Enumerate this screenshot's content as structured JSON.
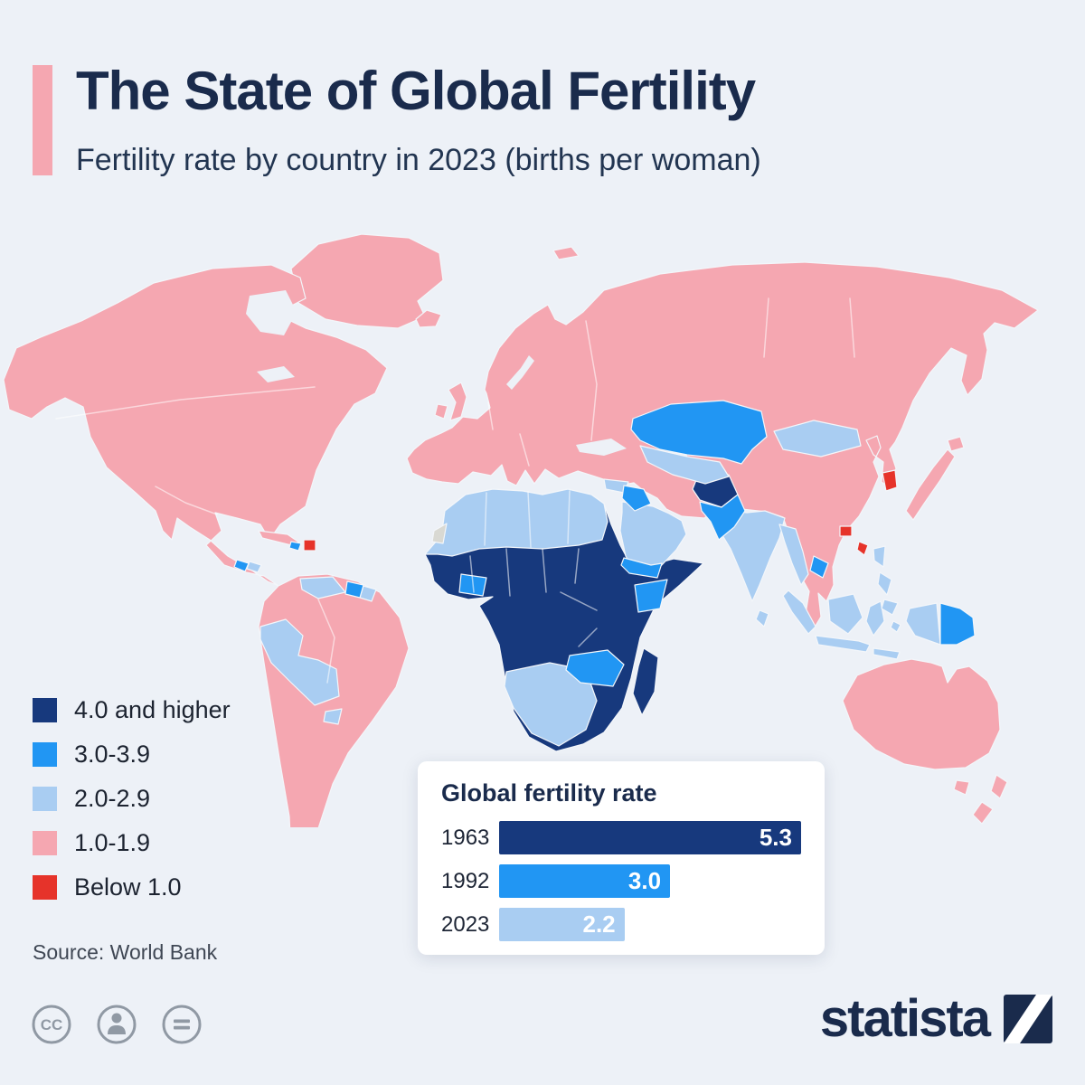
{
  "palette": {
    "bg": "#edf1f7",
    "ink": "#1a2b4c",
    "navy": "#17397d",
    "blue": "#2196f3",
    "light_blue": "#a9cdf2",
    "pink": "#f5a7b1",
    "red": "#e6332a",
    "grey": "#d9d9d3",
    "text": "#1c2330",
    "muted": "#3f4754",
    "icon_grey": "#9099a4"
  },
  "header": {
    "title": "The State of Global Fertility",
    "subtitle": "Fertility rate by country in 2023 (births per woman)"
  },
  "legend": {
    "items": [
      {
        "label": "4.0 and higher",
        "color": "#17397d"
      },
      {
        "label": "3.0-3.9",
        "color": "#2196f3"
      },
      {
        "label": "2.0-2.9",
        "color": "#a9cdf2"
      },
      {
        "label": "1.0-1.9",
        "color": "#f5a7b1"
      },
      {
        "label": "Below 1.0",
        "color": "#e6332a"
      }
    ]
  },
  "inset_chart": {
    "title": "Global fertility rate",
    "max": 5.3,
    "bars": [
      {
        "year": "1963",
        "value": 5.3,
        "value_label": "5.3",
        "color": "#17397d"
      },
      {
        "year": "1992",
        "value": 3.0,
        "value_label": "3.0",
        "color": "#2196f3"
      },
      {
        "year": "2023",
        "value": 2.2,
        "value_label": "2.2",
        "color": "#a9cdf2"
      }
    ]
  },
  "chart_data": [
    {
      "type": "heatmap",
      "subtype": "choropleth-world-map",
      "title": "Fertility rate by country in 2023 (births per woman)",
      "legend_bands": [
        {
          "label": "4.0 and higher",
          "color": "#17397d"
        },
        {
          "label": "3.0-3.9",
          "color": "#2196f3"
        },
        {
          "label": "2.0-2.9",
          "color": "#a9cdf2"
        },
        {
          "label": "1.0-1.9",
          "color": "#f5a7b1"
        },
        {
          "label": "Below 1.0",
          "color": "#e6332a"
        }
      ],
      "visible_region_bands": [
        {
          "region": "North America (Canada, USA, Mexico)",
          "band": "1.0-1.9"
        },
        {
          "region": "Greenland",
          "band": "1.0-1.9"
        },
        {
          "region": "South America (most)",
          "band": "1.0-1.9"
        },
        {
          "region": "Peru / Bolivia / Paraguay",
          "band": "2.0-2.9"
        },
        {
          "region": "Venezuela / Guyanas",
          "band": "2.0-2.9"
        },
        {
          "region": "Haiti",
          "band": "3.0-3.9"
        },
        {
          "region": "Puerto Rico",
          "band": "Below 1.0"
        },
        {
          "region": "Europe",
          "band": "1.0-1.9"
        },
        {
          "region": "Russia",
          "band": "1.0-1.9"
        },
        {
          "region": "North Africa (Morocco to Egypt)",
          "band": "2.0-2.9"
        },
        {
          "region": "Sub-Saharan Africa (most)",
          "band": "4.0 and higher"
        },
        {
          "region": "Ghana / Kenya / Zambia-Zimbabwe",
          "band": "3.0-3.9"
        },
        {
          "region": "Southern Africa (Namibia, Botswana, South Africa)",
          "band": "2.0-2.9"
        },
        {
          "region": "Madagascar",
          "band": "4.0 and higher"
        },
        {
          "region": "Arabian Peninsula",
          "band": "2.0-2.9"
        },
        {
          "region": "Iraq / Yemen",
          "band": "3.0-3.9"
        },
        {
          "region": "Kazakhstan / Central Asia",
          "band": "3.0-3.9"
        },
        {
          "region": "Uzbekistan / Turkmenistan",
          "band": "2.0-2.9"
        },
        {
          "region": "Afghanistan",
          "band": "4.0 and higher"
        },
        {
          "region": "Pakistan",
          "band": "3.0-3.9"
        },
        {
          "region": "India",
          "band": "2.0-2.9"
        },
        {
          "region": "Mongolia",
          "band": "2.0-2.9"
        },
        {
          "region": "China",
          "band": "1.0-1.9"
        },
        {
          "region": "Japan",
          "band": "1.0-1.9"
        },
        {
          "region": "South Korea",
          "band": "Below 1.0"
        },
        {
          "region": "Hong Kong / Taiwan",
          "band": "Below 1.0"
        },
        {
          "region": "Southeast Asia (Indonesia, Philippines, Myanmar)",
          "band": "2.0-2.9"
        },
        {
          "region": "Papua New Guinea",
          "band": "3.0-3.9"
        },
        {
          "region": "Australia / New Zealand",
          "band": "1.0-1.9"
        }
      ]
    },
    {
      "type": "bar",
      "orientation": "horizontal",
      "title": "Global fertility rate",
      "categories": [
        "1963",
        "1992",
        "2023"
      ],
      "values": [
        5.3,
        3.0,
        2.2
      ],
      "data_labels": [
        "5.3",
        "3.0",
        "2.2"
      ],
      "xlim": [
        0,
        5.3
      ],
      "legend_position": "none",
      "grid": false
    }
  ],
  "footer": {
    "source": "Source: World Bank",
    "brand": "statista"
  },
  "icons": {
    "cc_text": "CC",
    "names": [
      "cc-license-icon",
      "attribution-person-icon",
      "no-derivatives-icon",
      "statista-logo-mark"
    ]
  }
}
